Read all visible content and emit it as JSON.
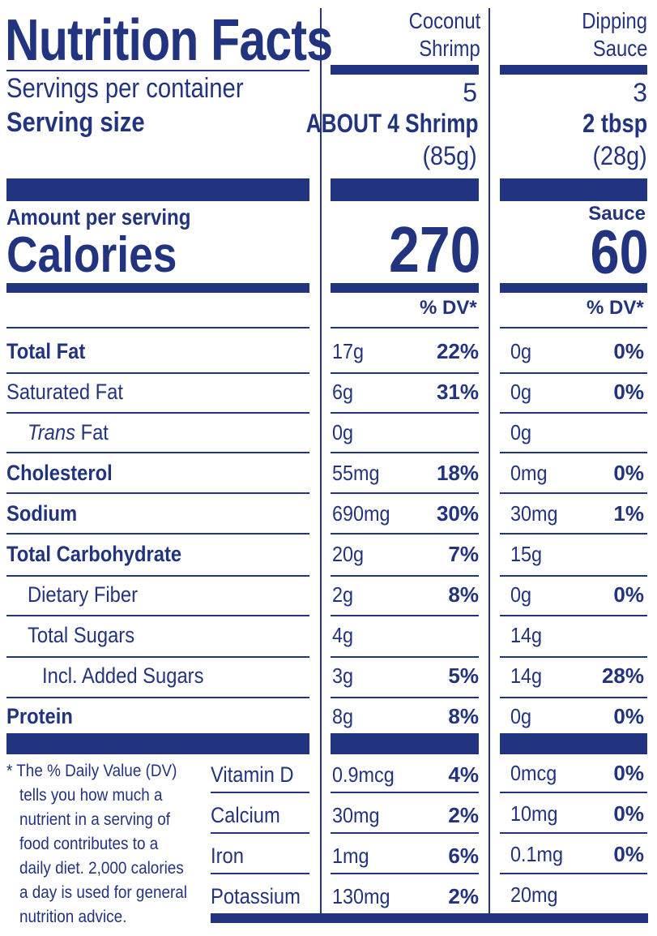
{
  "title": "Nutrition Facts",
  "columns": {
    "shrimp": {
      "header": [
        "Coconut",
        "Shrimp"
      ],
      "servings": "5",
      "serving_size_main": "ABOUT 4 Shrimp",
      "serving_size_weight": "(85g)",
      "calories": "270"
    },
    "sauce": {
      "header": [
        "Dipping",
        "Sauce"
      ],
      "servings": "3",
      "serving_size_main": "2 tbsp",
      "serving_size_weight": "(28g)",
      "calories_label": "Sauce",
      "calories": "60"
    }
  },
  "labels": {
    "servings_per_container": "Servings per container",
    "serving_size": "Serving size",
    "amount_per_serving": "Amount per serving",
    "calories": "Calories",
    "dv_header": "% DV*"
  },
  "nutrients": [
    {
      "name": "Total Fat",
      "bold": true,
      "indent": 0,
      "shrimp_amt": "17g",
      "shrimp_dv": "22%",
      "sauce_amt": "0g",
      "sauce_dv": "0%"
    },
    {
      "name": "Saturated Fat",
      "bold": false,
      "indent": 0,
      "shrimp_amt": "6g",
      "shrimp_dv": "31%",
      "sauce_amt": "0g",
      "sauce_dv": "0%"
    },
    {
      "name_italic": "Trans",
      "name_rest": " Fat",
      "bold": false,
      "indent": 1,
      "shrimp_amt": "0g",
      "shrimp_dv": "",
      "sauce_amt": "0g",
      "sauce_dv": ""
    },
    {
      "name": "Cholesterol",
      "bold": true,
      "indent": 0,
      "shrimp_amt": "55mg",
      "shrimp_dv": "18%",
      "sauce_amt": "0mg",
      "sauce_dv": "0%"
    },
    {
      "name": "Sodium",
      "bold": true,
      "indent": 0,
      "shrimp_amt": "690mg",
      "shrimp_dv": "30%",
      "sauce_amt": "30mg",
      "sauce_dv": "1%"
    },
    {
      "name": "Total Carbohydrate",
      "bold": true,
      "indent": 0,
      "shrimp_amt": "20g",
      "shrimp_dv": "7%",
      "sauce_amt": "15g",
      "sauce_dv": ""
    },
    {
      "name": "Dietary Fiber",
      "bold": false,
      "indent": 1,
      "shrimp_amt": "2g",
      "shrimp_dv": "8%",
      "sauce_amt": "0g",
      "sauce_dv": "0%"
    },
    {
      "name": "Total Sugars",
      "bold": false,
      "indent": 1,
      "shrimp_amt": "4g",
      "shrimp_dv": "",
      "sauce_amt": "14g",
      "sauce_dv": ""
    },
    {
      "name": "Incl. Added Sugars",
      "bold": false,
      "indent": 2,
      "shrimp_amt": "3g",
      "shrimp_dv": "5%",
      "sauce_amt": "14g",
      "sauce_dv": "28%"
    },
    {
      "name": "Protein",
      "bold": true,
      "indent": 0,
      "shrimp_amt": "8g",
      "shrimp_dv": "8%",
      "sauce_amt": "0g",
      "sauce_dv": "0%"
    }
  ],
  "vitamins": [
    {
      "name": "Vitamin D",
      "shrimp_amt": "0.9mcg",
      "shrimp_dv": "4%",
      "sauce_amt": "0mcg",
      "sauce_dv": "0%"
    },
    {
      "name": "Calcium",
      "shrimp_amt": "30mg",
      "shrimp_dv": "2%",
      "sauce_amt": "10mg",
      "sauce_dv": "0%"
    },
    {
      "name": "Iron",
      "shrimp_amt": "1mg",
      "shrimp_dv": "6%",
      "sauce_amt": "0.1mg",
      "sauce_dv": "0%"
    },
    {
      "name": "Potassium",
      "shrimp_amt": "130mg",
      "shrimp_dv": "2%",
      "sauce_amt": "20mg",
      "sauce_dv": ""
    }
  ],
  "footnote": [
    "* The % Daily Value (DV)",
    "tells you how much a",
    "nutrient in a serving of",
    "food contributes to a",
    "daily diet. 2,000 calories",
    "a day is used for general",
    "nutrition advice."
  ],
  "colors": {
    "ink": "#22347f",
    "background": "#ffffff"
  }
}
